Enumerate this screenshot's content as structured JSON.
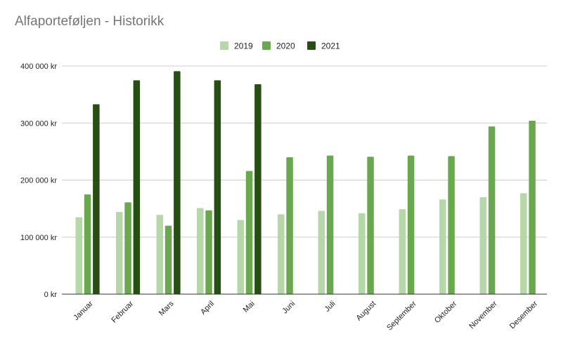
{
  "chart_data": {
    "type": "bar",
    "title": "Alfaporteføljen - Historikk",
    "categories": [
      "Januar",
      "Februar",
      "Mars",
      "April",
      "Mai",
      "Juni",
      "Juli",
      "August",
      "September",
      "Oktober",
      "November",
      "Desember"
    ],
    "series": [
      {
        "name": "2019",
        "color": "#b6d7a8",
        "values": [
          135000,
          144000,
          139000,
          151000,
          130000,
          140000,
          146000,
          142000,
          149000,
          166000,
          170000,
          177000
        ]
      },
      {
        "name": "2020",
        "color": "#6aa84f",
        "values": [
          175000,
          161000,
          120000,
          147000,
          216000,
          240000,
          243000,
          241000,
          243000,
          242000,
          294000,
          304000
        ]
      },
      {
        "name": "2021",
        "color": "#274e13",
        "values": [
          333000,
          375000,
          391000,
          375000,
          368000,
          null,
          null,
          null,
          null,
          null,
          null,
          null
        ]
      }
    ],
    "ylim": [
      0,
      400000
    ],
    "yticks": [
      0,
      100000,
      200000,
      300000,
      400000
    ],
    "ytick_labels": [
      "0 kr",
      "100 000 kr",
      "200 000 kr",
      "300 000 kr",
      "400 000 kr"
    ],
    "xlabel": "",
    "ylabel": "",
    "grid": true,
    "legend_position": "top-center"
  }
}
